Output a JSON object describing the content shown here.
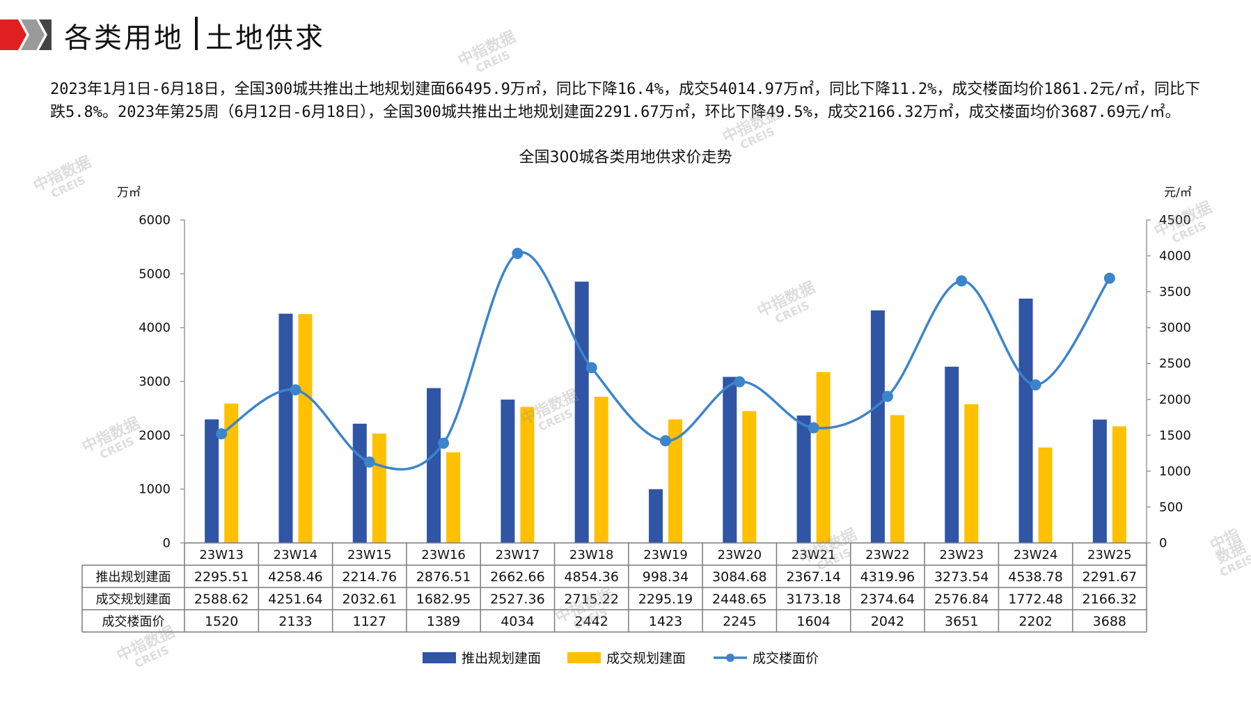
{
  "header": {
    "title_left": "各类用地",
    "title_right": "土地供求"
  },
  "summary": {
    "text": "2023年1月1日-6月18日，全国300城共推出土地规划建面66495.9万㎡，同比下降16.4%，成交54014.97万㎡，同比下降11.2%，成交楼面均价1861.2元/㎡，同比下跌5.8%。2023年第25周（6月12日-6月18日），全国300城共推出土地规划建面2291.67万㎡，环比下降49.5%，成交2166.32万㎡，成交楼面均价3687.69元/㎡。"
  },
  "watermark": {
    "cn": "中指数据",
    "en": "CREIS"
  },
  "colors": {
    "supply": "#2F55A4",
    "deal": "#FFC000",
    "price": "#3C84CC",
    "brand_red": "#E02020"
  },
  "chart_data": {
    "type": "bar",
    "title": "全国300城各类用地供求价走势",
    "y_left_unit": "万㎡",
    "y_right_unit": "元/㎡",
    "y_left_lim": [
      0,
      6000
    ],
    "y_right_lim": [
      0,
      4500
    ],
    "y_left_ticks": [
      "0",
      "1000",
      "2000",
      "3000",
      "4000",
      "5000",
      "6000"
    ],
    "y_right_ticks": [
      "0",
      "500",
      "1000",
      "1500",
      "2000",
      "2500",
      "3000",
      "3500",
      "4000",
      "4500"
    ],
    "categories": [
      "23W13",
      "23W14",
      "23W15",
      "23W16",
      "23W17",
      "23W18",
      "23W19",
      "23W20",
      "23W21",
      "23W22",
      "23W23",
      "23W24",
      "23W25"
    ],
    "series": [
      {
        "name": "推出规划建面",
        "kind": "bar",
        "axis": "left",
        "values": [
          2295.51,
          4258.46,
          2214.76,
          2876.51,
          2662.66,
          4854.36,
          998.34,
          3084.68,
          2367.14,
          4319.96,
          3273.54,
          4538.78,
          2291.67
        ]
      },
      {
        "name": "成交规划建面",
        "kind": "bar",
        "axis": "left",
        "values": [
          2588.62,
          4251.64,
          2032.61,
          1682.95,
          2527.36,
          2715.22,
          2295.19,
          2448.65,
          3173.18,
          2374.64,
          2576.84,
          1772.48,
          2166.32
        ]
      },
      {
        "name": "成交楼面价",
        "kind": "line",
        "axis": "right",
        "values": [
          1520,
          2133,
          1127,
          1389,
          4034,
          2442,
          1423,
          2245,
          1604,
          2042,
          3651,
          2202,
          3688
        ]
      }
    ],
    "table_rows": [
      {
        "label": "推出规划建面",
        "cells": [
          "2295.51",
          "4258.46",
          "2214.76",
          "2876.51",
          "2662.66",
          "4854.36",
          "998.34",
          "3084.68",
          "2367.14",
          "4319.96",
          "3273.54",
          "4538.78",
          "2291.67"
        ]
      },
      {
        "label": "成交规划建面",
        "cells": [
          "2588.62",
          "4251.64",
          "2032.61",
          "1682.95",
          "2527.36",
          "2715.22",
          "2295.19",
          "2448.65",
          "3173.18",
          "2374.64",
          "2576.84",
          "1772.48",
          "2166.32"
        ]
      },
      {
        "label": "成交楼面价",
        "cells": [
          "1520",
          "2133",
          "1127",
          "1389",
          "4034",
          "2442",
          "1423",
          "2245",
          "1604",
          "2042",
          "3651",
          "2202",
          "3688"
        ]
      }
    ],
    "legend_placement": "bottom-center",
    "grid": false
  }
}
